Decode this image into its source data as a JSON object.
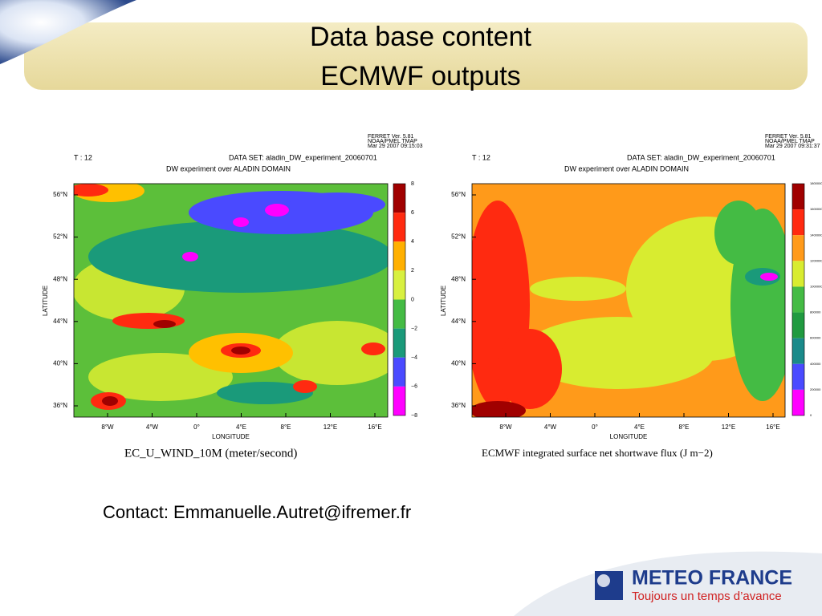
{
  "header": {
    "title_lines": [
      "Data base content",
      "ECMWF outputs"
    ]
  },
  "panels": [
    {
      "ferret": [
        "FERRET Ver. 5.81",
        "NOAA/PMEL TMAP",
        "Mar 29 2007 09:15:03"
      ],
      "time": "T : 12",
      "dataset": "DATA SET: aladin_DW_experiment_20060701",
      "subtitle": "DW experiment over ALADIN DOMAIN",
      "y_label": "LATITUDE",
      "x_label": "LONGITUDE",
      "lat_ticks": [
        "56°N",
        "52°N",
        "48°N",
        "44°N",
        "40°N",
        "36°N"
      ],
      "lon_ticks": [
        "8°W",
        "4°W",
        "0°",
        "4°E",
        "8°E",
        "12°E",
        "16°E"
      ],
      "colorbar_labels": [
        "8",
        "6",
        "4",
        "2",
        "0",
        "−2",
        "−4",
        "−6",
        "−8"
      ],
      "caption": "EC_U_WIND_10M (meter/second)"
    },
    {
      "ferret": [
        "FERRET Ver. 5.81",
        "NOAA/PMEL TMAP",
        "Mar 29 2007 09:31:37"
      ],
      "time": "T : 12",
      "dataset": "DATA SET: aladin_DW_experiment_20060701",
      "subtitle": "DW experiment over ALADIN DOMAIN",
      "y_label": "LATITUDE",
      "x_label": "LONGITUDE",
      "lat_ticks": [
        "56°N",
        "52°N",
        "48°N",
        "44°N",
        "40°N",
        "36°N"
      ],
      "lon_ticks": [
        "8°W",
        "4°W",
        "0°",
        "4°E",
        "8°E",
        "12°E",
        "16°E"
      ],
      "colorbar_labels": [
        "1800000",
        "1600000",
        "1400000",
        "1200000",
        "1000000",
        "800000",
        "600000",
        "400000",
        "200000",
        "0"
      ],
      "caption": "ECMWF integrated surface net shortwave flux (J m−2)"
    }
  ],
  "contact": "Contact: Emmanuelle.Autret@ifremer.fr",
  "logo": {
    "name": "METEO FRANCE",
    "tagline": "Toujours un temps d’avance"
  }
}
